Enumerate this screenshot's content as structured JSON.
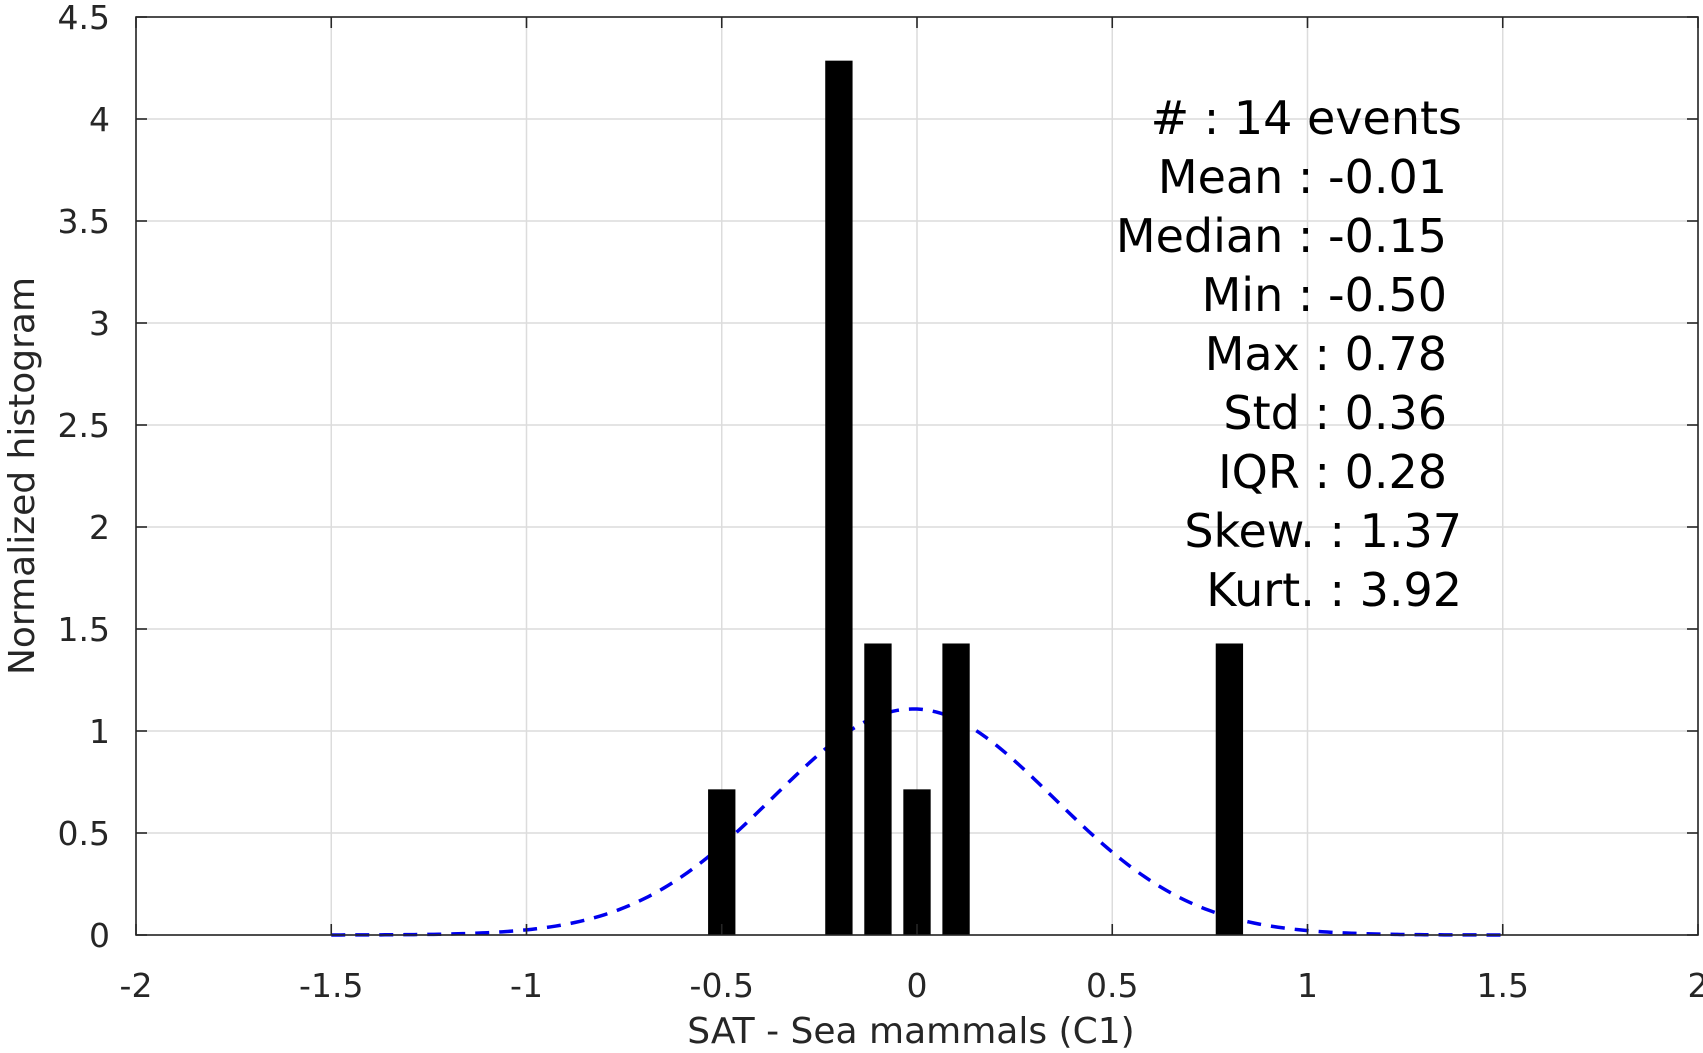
{
  "chart_data": {
    "type": "bar",
    "xlabel": "SAT - Sea mammals  (C1)",
    "ylabel": "Normalized histogram",
    "xlim": [
      -2,
      2
    ],
    "ylim": [
      0,
      4.5
    ],
    "xticks": [
      -2,
      -1.5,
      -1,
      -0.5,
      0,
      0.5,
      1,
      1.5,
      2
    ],
    "xtick_labels": [
      "-2",
      "-1.5",
      "-1",
      "-0.5",
      "0",
      "0.5",
      "1",
      "1.5",
      "2"
    ],
    "yticks": [
      0,
      0.5,
      1,
      1.5,
      2,
      2.5,
      3,
      3.5,
      4,
      4.5
    ],
    "ytick_labels": [
      "0",
      "0.5",
      "1",
      "1.5",
      "2",
      "2.5",
      "3",
      "3.5",
      "4",
      "4.5"
    ],
    "grid": true,
    "bins": [
      {
        "center": -0.5,
        "value": 0.714
      },
      {
        "center": -0.2,
        "value": 4.286
      },
      {
        "center": -0.1,
        "value": 1.429
      },
      {
        "center": 0.0,
        "value": 0.714
      },
      {
        "center": 0.1,
        "value": 1.429
      },
      {
        "center": 0.8,
        "value": 1.429
      }
    ],
    "bin_width": 0.07,
    "fit_curve": {
      "style": "dashed",
      "color": "#0000ee",
      "distribution": "normal",
      "mean": -0.01,
      "std": 0.36,
      "x_range": [
        -1.5,
        1.5
      ]
    },
    "annotations": [
      "#  : 14 events",
      "Mean : -0.01",
      "Median : -0.15",
      "Min : -0.50",
      "Max : 0.78",
      "Std : 0.36",
      "IQR : 0.28",
      "Skew. : 1.37",
      "Kurt. : 3.92"
    ]
  }
}
